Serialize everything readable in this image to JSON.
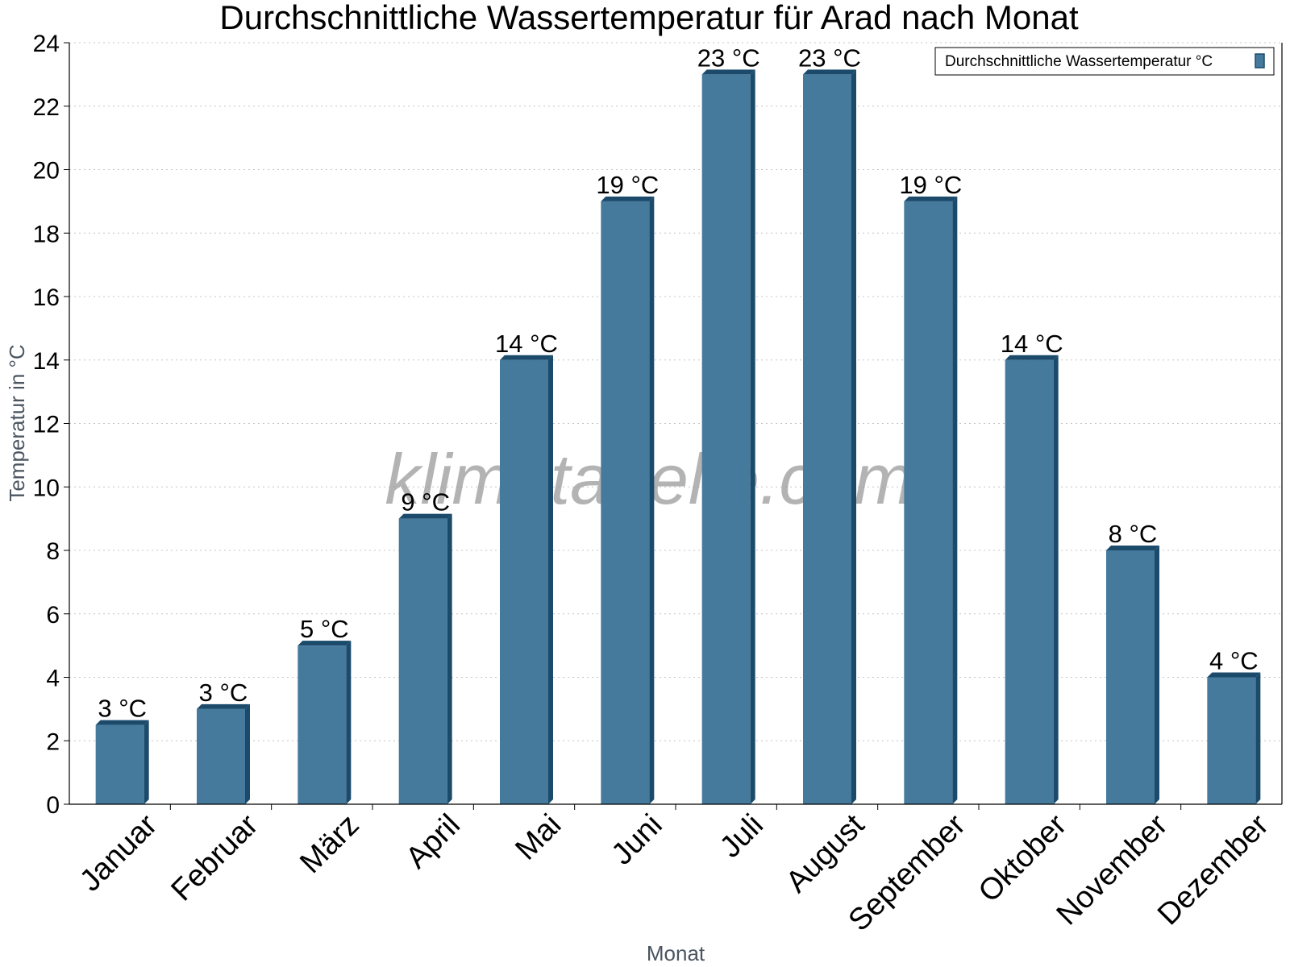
{
  "watermark": "klimatabelle.com",
  "chart_data": {
    "type": "bar",
    "title": "Durchschnittliche Wassertemperatur für Arad nach Monat",
    "xlabel": "Monat",
    "ylabel": "Temperatur in °C",
    "ylim": [
      0,
      24
    ],
    "yticks": [
      0,
      2,
      4,
      6,
      8,
      10,
      12,
      14,
      16,
      18,
      20,
      22,
      24
    ],
    "grid": true,
    "legend_position": "top-right",
    "categories": [
      "Januar",
      "Februar",
      "März",
      "April",
      "Mai",
      "Juni",
      "Juli",
      "August",
      "September",
      "Oktober",
      "November",
      "Dezember"
    ],
    "series": [
      {
        "name": "Durchschnittliche Wassertemperatur °C",
        "color": "#457a9c",
        "edge_color": "#1b4a6b",
        "values": [
          2.5,
          3,
          5,
          9,
          14,
          19,
          23,
          23,
          19,
          14,
          8,
          4
        ],
        "data_labels": [
          "3 °C",
          "3 °C",
          "5 °C",
          "9 °C",
          "14 °C",
          "19 °C",
          "23 °C",
          "23 °C",
          "19 °C",
          "14 °C",
          "8 °C",
          "4 °C"
        ]
      }
    ]
  }
}
